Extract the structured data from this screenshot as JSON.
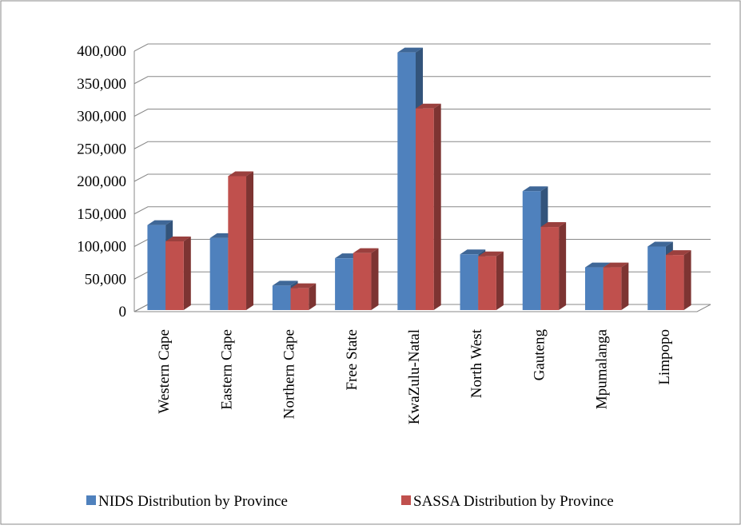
{
  "chart_data": {
    "type": "bar3d",
    "categories": [
      "Western Cape",
      "Eastern Cape",
      "Northern Cape",
      "Free State",
      "KwaZulu-Natal",
      "North West",
      "Gauteng",
      "Mpumalanga",
      "Limpopo"
    ],
    "series": [
      {
        "name": "NIDS Distribution by Province",
        "color": "#4f81bd",
        "values": [
          133000,
          113000,
          40000,
          82000,
          398000,
          88000,
          185000,
          68000,
          100000
        ]
      },
      {
        "name": "SASSA Distribution by Province",
        "color": "#c0504d",
        "values": [
          108000,
          208000,
          36000,
          90000,
          312000,
          85000,
          130000,
          68000,
          87000
        ]
      }
    ],
    "ylim": [
      0,
      400000
    ],
    "yticks": [
      0,
      {
        "value": 50000,
        "label": "50,000"
      },
      {
        "value": 100000,
        "label": "100,000"
      },
      {
        "value": 150000,
        "label": "150,000"
      },
      {
        "value": 200000,
        "label": "200,000"
      },
      {
        "value": 250000,
        "label": "250,000"
      },
      {
        "value": 300000,
        "label": "300,000"
      },
      {
        "value": 350000,
        "label": "350,000"
      },
      {
        "value": 400000,
        "label": "400,000"
      }
    ],
    "grid": true,
    "legend": "bottom"
  }
}
